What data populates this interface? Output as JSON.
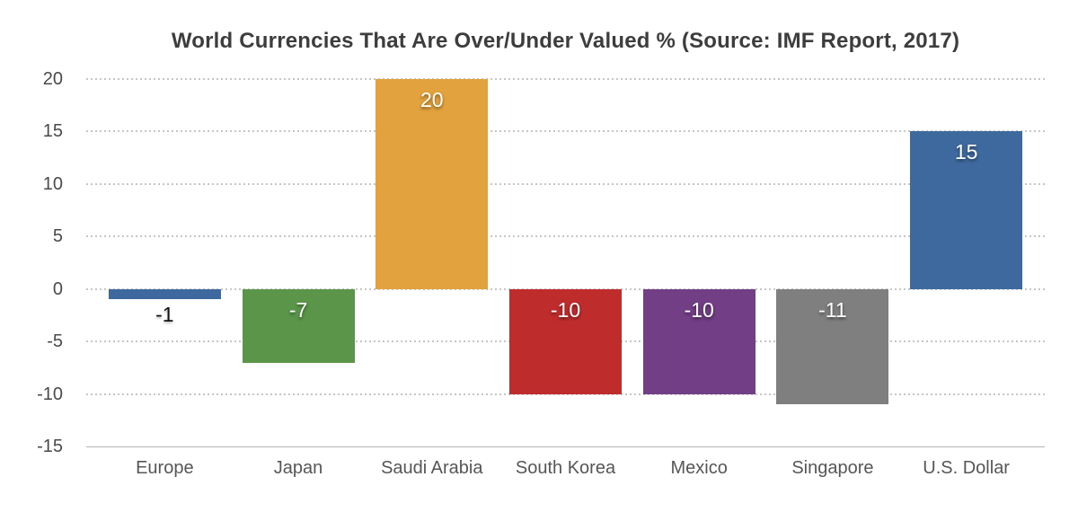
{
  "chart_data": {
    "type": "bar",
    "title": "World Currencies That Are Over/Under Valued % (Source: IMF Report, 2017)",
    "categories": [
      "Europe",
      "Japan",
      "Saudi Arabia",
      "South Korea",
      "Mexico",
      "Singapore",
      "U.S. Dollar"
    ],
    "values": [
      -1,
      -7,
      20,
      -10,
      -10,
      -11,
      15
    ],
    "value_labels": [
      "-1",
      "-7",
      "20",
      "-10",
      "-10",
      "-11",
      "15"
    ],
    "bar_colors": [
      "#3E699E",
      "#5A9549",
      "#E2A23D",
      "#BF2C2C",
      "#723E85",
      "#7F7F7F",
      "#3E699E"
    ],
    "yticks": [
      20,
      15,
      10,
      5,
      0,
      -5,
      -10,
      -15
    ],
    "ylim": [
      -15,
      20
    ],
    "xlabel": "",
    "ylabel": "",
    "grid": "horizontal-dotted",
    "legend": "none"
  },
  "colors": {
    "background": "#ffffff",
    "title": "#3d3d3d",
    "tick_label": "#4a4a4a",
    "category_label": "#565656",
    "gridline": "#c6c6c6",
    "axis_line": "#b3b3b3",
    "value_label_inside": "#ffffff",
    "value_label_outside": "#111111"
  }
}
